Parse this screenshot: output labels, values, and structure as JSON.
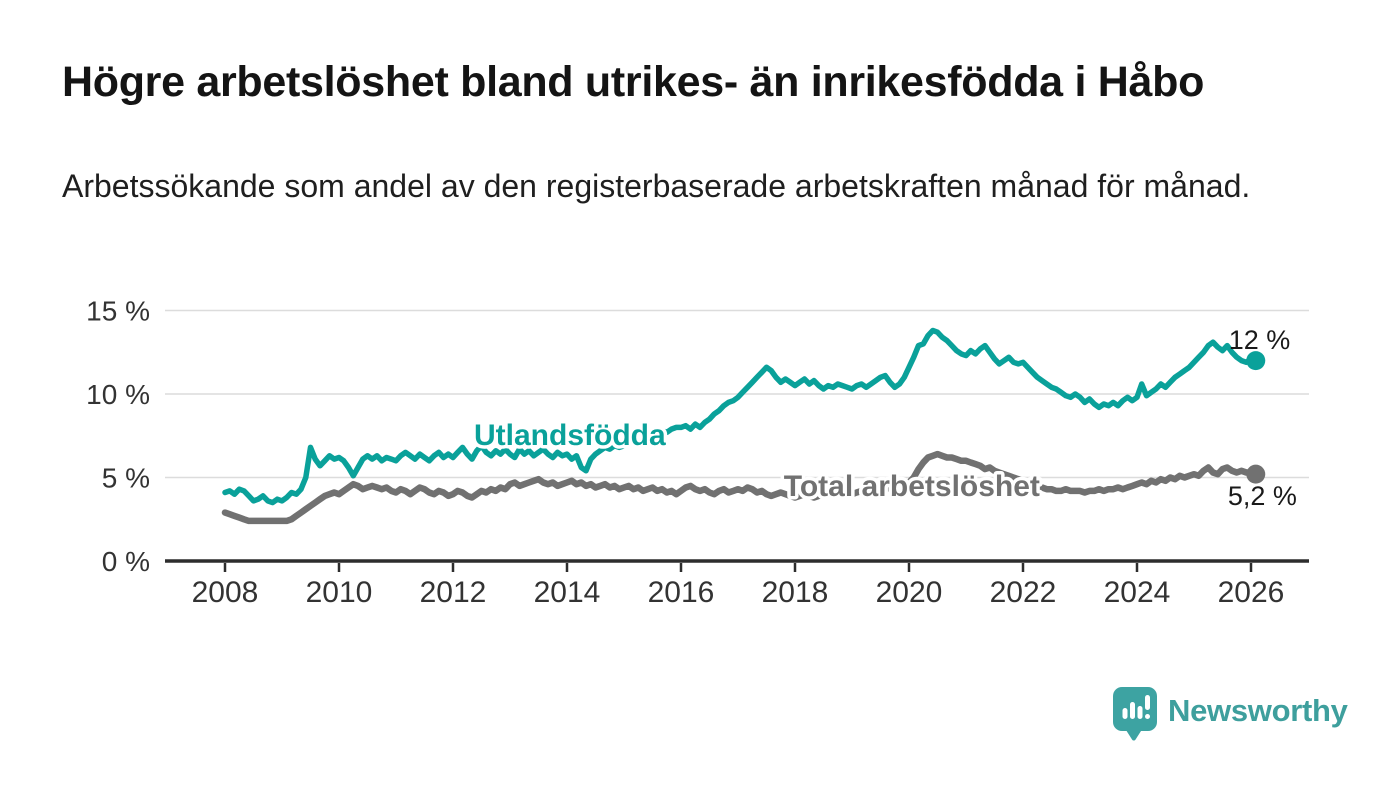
{
  "title": "Högre arbetslöshet bland utrikes- än inrikesfödda i Håbo",
  "subtitle": "Arbetssökande som andel av den registerbaserade arbetskraften månad för månad.",
  "branding": {
    "name": "Newsworthy",
    "icon": "bar-chart-speech-bubble-icon",
    "icon_color": "#3da3a2"
  },
  "colors": {
    "background": "#ffffff",
    "title_text": "#141414",
    "subtitle_text": "#1f1f1f",
    "axis": "#2d2d2d",
    "gridline": "#dcdcdc",
    "tick_label": "#333333",
    "end_label_text": "#1a1a1a",
    "series_utlandsfodda": "#0aa19a",
    "series_total": "#717171"
  },
  "chart_data": {
    "type": "line",
    "title": "Högre arbetslöshet bland utrikes- än inrikesfödda i Håbo",
    "subtitle": "Arbetssökande som andel av den registerbaserade arbetskraften månad för månad.",
    "unit": "%",
    "x_interval": "monthly",
    "x_start_year": 2008,
    "x_end": "2026-02",
    "xlim": [
      2006.95,
      2027.05
    ],
    "ylim": [
      0,
      15.5
    ],
    "grid": "horizontal-light",
    "legend": "inline-labels",
    "x_ticks": [
      "2008",
      "2010",
      "2012",
      "2014",
      "2016",
      "2018",
      "2020",
      "2022",
      "2024",
      "2026"
    ],
    "y_ticks": [
      {
        "value": 0,
        "label": "0 %"
      },
      {
        "value": 5,
        "label": "5 %"
      },
      {
        "value": 10,
        "label": "10 %"
      },
      {
        "value": 15,
        "label": "15 %"
      }
    ],
    "series": [
      {
        "name": "Utlandsfödda",
        "color": "#0aa19a",
        "end_value": 12.0,
        "end_label": "12 %",
        "label_anchor": {
          "year": 2014.05,
          "pct": 7.55
        },
        "end_label_anchor": {
          "year": 2026.15,
          "pct": 13.3
        },
        "values": [
          4.1,
          4.2,
          4.0,
          4.3,
          4.2,
          3.9,
          3.6,
          3.7,
          3.9,
          3.6,
          3.5,
          3.7,
          3.6,
          3.8,
          4.1,
          4.0,
          4.3,
          5.0,
          6.8,
          6.1,
          5.7,
          6.0,
          6.3,
          6.1,
          6.2,
          6.0,
          5.6,
          5.1,
          5.6,
          6.1,
          6.3,
          6.1,
          6.3,
          6.0,
          6.2,
          6.1,
          6.0,
          6.3,
          6.5,
          6.3,
          6.1,
          6.4,
          6.2,
          6.0,
          6.3,
          6.5,
          6.2,
          6.4,
          6.2,
          6.5,
          6.8,
          6.4,
          6.1,
          6.6,
          6.9,
          6.5,
          6.3,
          6.6,
          6.4,
          6.7,
          6.4,
          6.2,
          6.7,
          6.4,
          6.6,
          6.3,
          6.5,
          6.7,
          6.4,
          6.2,
          6.5,
          6.3,
          6.4,
          6.1,
          6.3,
          5.6,
          5.4,
          6.1,
          6.4,
          6.6,
          6.8,
          6.7,
          6.9,
          6.8,
          6.9,
          7.1,
          7.0,
          7.3,
          7.2,
          7.5,
          7.7,
          7.6,
          7.8,
          7.7,
          7.9,
          8.0,
          8.0,
          8.1,
          7.9,
          8.2,
          8.0,
          8.3,
          8.5,
          8.8,
          9.0,
          9.3,
          9.5,
          9.6,
          9.8,
          10.1,
          10.4,
          10.7,
          11.0,
          11.3,
          11.6,
          11.4,
          11.0,
          10.7,
          10.9,
          10.7,
          10.5,
          10.7,
          10.9,
          10.6,
          10.8,
          10.5,
          10.3,
          10.5,
          10.4,
          10.6,
          10.5,
          10.4,
          10.3,
          10.5,
          10.6,
          10.4,
          10.6,
          10.8,
          11.0,
          11.1,
          10.7,
          10.4,
          10.6,
          11.0,
          11.6,
          12.2,
          12.9,
          13.0,
          13.5,
          13.8,
          13.7,
          13.4,
          13.2,
          12.9,
          12.6,
          12.4,
          12.3,
          12.6,
          12.4,
          12.7,
          12.9,
          12.5,
          12.1,
          11.8,
          12.0,
          12.2,
          11.9,
          11.8,
          11.9,
          11.6,
          11.3,
          11.0,
          10.8,
          10.6,
          10.4,
          10.3,
          10.1,
          9.9,
          9.8,
          10.0,
          9.8,
          9.5,
          9.7,
          9.4,
          9.2,
          9.4,
          9.3,
          9.5,
          9.3,
          9.6,
          9.8,
          9.6,
          9.8,
          10.6,
          9.9,
          10.1,
          10.3,
          10.6,
          10.4,
          10.7,
          11.0,
          11.2,
          11.4,
          11.6,
          11.9,
          12.2,
          12.5,
          12.9,
          13.1,
          12.8,
          12.6,
          12.9,
          12.5,
          12.2,
          12.0,
          11.9,
          12.1,
          12.0
        ]
      },
      {
        "name": "Total arbetslöshet",
        "color": "#717171",
        "end_value": 5.2,
        "end_label": "5,2 %",
        "label_anchor": {
          "year": 2020.05,
          "pct": 4.5
        },
        "end_label_anchor": {
          "year": 2026.2,
          "pct": 3.95
        },
        "values": [
          2.9,
          2.8,
          2.7,
          2.6,
          2.5,
          2.4,
          2.4,
          2.4,
          2.4,
          2.4,
          2.4,
          2.4,
          2.4,
          2.4,
          2.5,
          2.7,
          2.9,
          3.1,
          3.3,
          3.5,
          3.7,
          3.9,
          4.0,
          4.1,
          4.0,
          4.2,
          4.4,
          4.6,
          4.5,
          4.3,
          4.4,
          4.5,
          4.4,
          4.3,
          4.4,
          4.2,
          4.1,
          4.3,
          4.2,
          4.0,
          4.2,
          4.4,
          4.3,
          4.1,
          4.0,
          4.2,
          4.1,
          3.9,
          4.0,
          4.2,
          4.1,
          3.9,
          3.8,
          4.0,
          4.2,
          4.1,
          4.3,
          4.2,
          4.4,
          4.3,
          4.6,
          4.7,
          4.5,
          4.6,
          4.7,
          4.8,
          4.9,
          4.7,
          4.6,
          4.7,
          4.5,
          4.6,
          4.7,
          4.8,
          4.6,
          4.7,
          4.5,
          4.6,
          4.4,
          4.5,
          4.6,
          4.4,
          4.5,
          4.3,
          4.4,
          4.5,
          4.3,
          4.4,
          4.2,
          4.3,
          4.4,
          4.2,
          4.3,
          4.1,
          4.2,
          4.0,
          4.2,
          4.4,
          4.5,
          4.3,
          4.2,
          4.3,
          4.1,
          4.0,
          4.2,
          4.3,
          4.1,
          4.2,
          4.3,
          4.2,
          4.4,
          4.3,
          4.1,
          4.2,
          4.0,
          3.9,
          4.0,
          4.1,
          4.0,
          3.9,
          3.8,
          3.9,
          4.0,
          3.9,
          3.8,
          3.9,
          4.0,
          4.1,
          4.0,
          4.1,
          4.2,
          4.1,
          4.0,
          4.1,
          4.2,
          4.1,
          4.2,
          4.3,
          4.2,
          4.3,
          4.4,
          4.3,
          4.4,
          4.5,
          4.7,
          5.0,
          5.5,
          5.9,
          6.2,
          6.3,
          6.4,
          6.3,
          6.2,
          6.2,
          6.1,
          6.0,
          6.0,
          5.9,
          5.8,
          5.7,
          5.5,
          5.6,
          5.4,
          5.3,
          5.2,
          5.1,
          5.0,
          4.9,
          4.8,
          4.7,
          4.6,
          4.5,
          4.4,
          4.3,
          4.3,
          4.2,
          4.2,
          4.3,
          4.2,
          4.2,
          4.2,
          4.1,
          4.2,
          4.2,
          4.3,
          4.2,
          4.3,
          4.3,
          4.4,
          4.3,
          4.4,
          4.5,
          4.6,
          4.7,
          4.6,
          4.8,
          4.7,
          4.9,
          4.8,
          5.0,
          4.9,
          5.1,
          5.0,
          5.1,
          5.2,
          5.1,
          5.4,
          5.6,
          5.3,
          5.2,
          5.5,
          5.6,
          5.4,
          5.3,
          5.4,
          5.3,
          5.3,
          5.2
        ]
      }
    ]
  }
}
